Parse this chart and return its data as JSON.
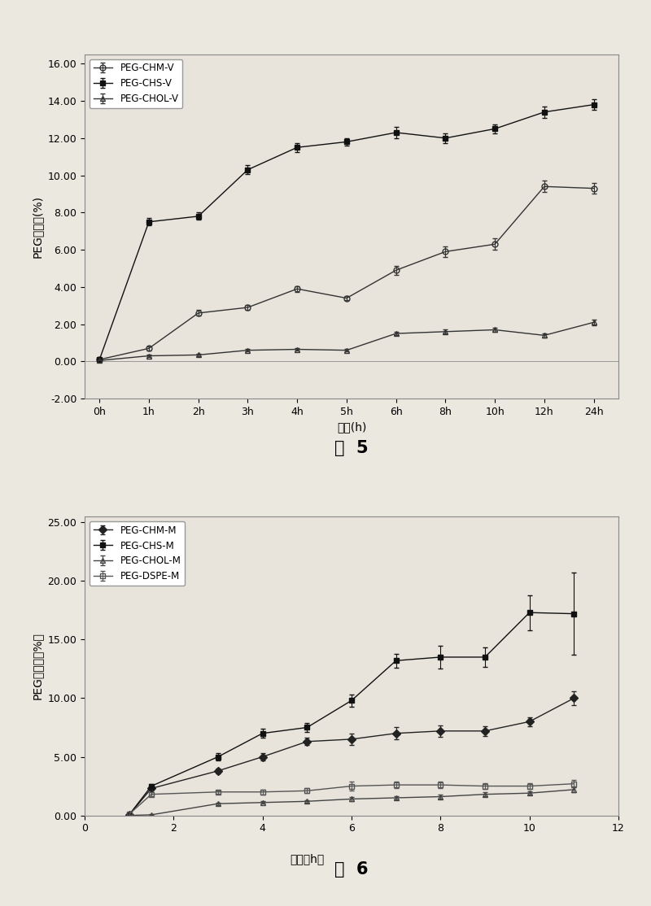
{
  "fig5": {
    "title_label": "5",
    "xlabel": "时间(h)",
    "ylabel": "PEG脱落量(%)",
    "xlim": [
      -0.3,
      10.5
    ],
    "ylim": [
      -2.0,
      16.5
    ],
    "yticks": [
      -2.0,
      0.0,
      2.0,
      4.0,
      6.0,
      8.0,
      10.0,
      12.0,
      14.0,
      16.0
    ],
    "xtick_labels": [
      "0h",
      "1h",
      "2h",
      "3h",
      "4h",
      "5h",
      "6h",
      "8h",
      "10h",
      "12h",
      "24h"
    ],
    "x_positions": [
      0,
      1,
      2,
      3,
      4,
      5,
      6,
      7,
      8,
      9,
      10
    ],
    "series": [
      {
        "label": "PEG-CHM-V",
        "marker": "o",
        "fillstyle": "none",
        "color": "#333333",
        "y": [
          0.1,
          0.7,
          2.6,
          2.9,
          3.9,
          3.4,
          4.9,
          5.9,
          6.3,
          9.4,
          9.3
        ],
        "yerr": [
          0.05,
          0.1,
          0.15,
          0.12,
          0.15,
          0.12,
          0.25,
          0.3,
          0.3,
          0.3,
          0.3
        ]
      },
      {
        "label": "PEG-CHS-V",
        "marker": "s",
        "fillstyle": "full",
        "color": "#111111",
        "y": [
          0.1,
          7.5,
          7.8,
          10.3,
          11.5,
          11.8,
          12.3,
          12.0,
          12.5,
          13.4,
          13.8
        ],
        "yerr": [
          0.05,
          0.2,
          0.2,
          0.25,
          0.25,
          0.2,
          0.3,
          0.25,
          0.25,
          0.3,
          0.3
        ]
      },
      {
        "label": "PEG-CHOL-V",
        "marker": "^",
        "fillstyle": "none",
        "color": "#333333",
        "y": [
          0.05,
          0.3,
          0.35,
          0.6,
          0.65,
          0.6,
          1.5,
          1.6,
          1.7,
          1.4,
          2.1
        ],
        "yerr": [
          0.03,
          0.05,
          0.05,
          0.07,
          0.07,
          0.07,
          0.1,
          0.1,
          0.1,
          0.1,
          0.15
        ]
      }
    ]
  },
  "fig6": {
    "title_label": "6",
    "ylabel": "PEG脱落量（%）",
    "xlim": [
      0,
      12
    ],
    "ylim": [
      0.0,
      25.5
    ],
    "yticks": [
      0.0,
      5.0,
      10.0,
      15.0,
      20.0,
      25.0
    ],
    "xticks": [
      0,
      2,
      4,
      6,
      8,
      10,
      12
    ],
    "x_positions": [
      1,
      1.5,
      3,
      4,
      5,
      6,
      7,
      8,
      9,
      10,
      11
    ],
    "series": [
      {
        "label": "PEG-CHM-M",
        "marker": "D",
        "fillstyle": "full",
        "color": "#222222",
        "y": [
          0.05,
          2.3,
          3.8,
          5.0,
          6.3,
          6.5,
          7.0,
          7.2,
          7.2,
          8.0,
          10.0
        ],
        "yerr": [
          0.05,
          0.15,
          0.2,
          0.3,
          0.3,
          0.5,
          0.5,
          0.5,
          0.4,
          0.4,
          0.6
        ]
      },
      {
        "label": "PEG-CHS-M",
        "marker": "s",
        "fillstyle": "full",
        "color": "#111111",
        "y": [
          0.05,
          2.5,
          5.0,
          7.0,
          7.5,
          9.8,
          13.2,
          13.5,
          13.5,
          17.3,
          17.2
        ],
        "yerr": [
          0.05,
          0.2,
          0.3,
          0.4,
          0.4,
          0.5,
          0.6,
          1.0,
          0.8,
          1.5,
          3.5
        ]
      },
      {
        "label": "PEG-CHOL-M",
        "marker": "^",
        "fillstyle": "none",
        "color": "#444444",
        "y": [
          0.0,
          0.05,
          1.0,
          1.1,
          1.2,
          1.4,
          1.5,
          1.6,
          1.8,
          1.9,
          2.2
        ],
        "yerr": [
          0.0,
          0.03,
          0.1,
          0.1,
          0.1,
          0.15,
          0.15,
          0.15,
          0.15,
          0.15,
          0.2
        ]
      },
      {
        "label": "PEG-DSPE-M",
        "marker": "s",
        "fillstyle": "none",
        "color": "#555555",
        "y": [
          0.1,
          1.8,
          2.0,
          2.0,
          2.1,
          2.5,
          2.6,
          2.6,
          2.5,
          2.5,
          2.7
        ],
        "yerr": [
          0.05,
          0.15,
          0.15,
          0.2,
          0.2,
          0.4,
          0.3,
          0.3,
          0.25,
          0.25,
          0.3
        ]
      }
    ]
  },
  "background_color": "#ebe8e0",
  "plot_bg": "#e8e4dc",
  "title_fontsize": 15,
  "label_fontsize": 10,
  "tick_fontsize": 9,
  "legend_fontsize": 8.5
}
